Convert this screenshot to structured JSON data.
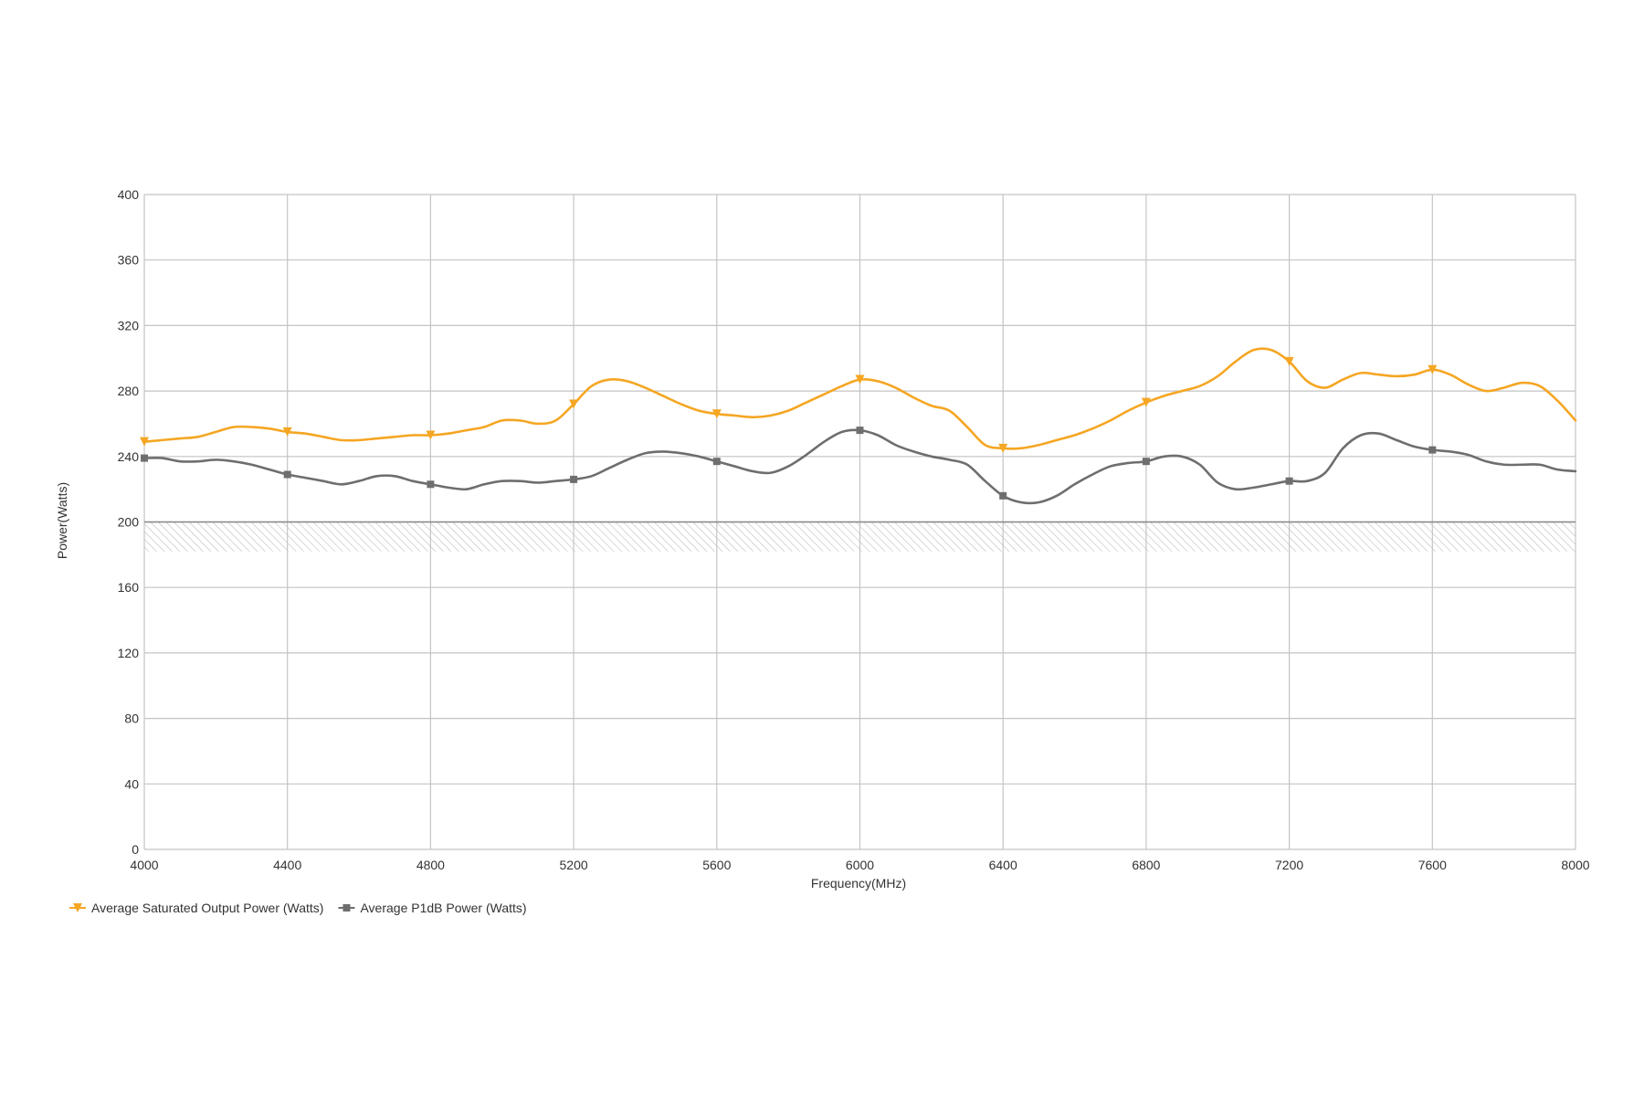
{
  "chart_data": {
    "type": "line",
    "xlabel": "Frequency(MHz)",
    "ylabel": "Power(Watts)",
    "xlim": [
      4000,
      8000
    ],
    "ylim": [
      0,
      400
    ],
    "x_ticks": [
      4000,
      4400,
      4800,
      5200,
      5600,
      6000,
      6400,
      6800,
      7200,
      7600,
      8000
    ],
    "y_ticks": [
      0,
      40,
      80,
      120,
      160,
      200,
      240,
      280,
      320,
      360,
      400
    ],
    "grid": true,
    "legend_position": "bottom-left",
    "hatched_band": [
      182,
      200
    ],
    "series": [
      {
        "name": "Average Saturated Output Power (Watts)",
        "color": "#f5a623",
        "marker": "triangle",
        "marker_x": [
          4000,
          4400,
          4800,
          5200,
          5600,
          6000,
          6400,
          6800,
          7200,
          7600
        ],
        "x": [
          4000,
          4050,
          4100,
          4150,
          4200,
          4250,
          4300,
          4350,
          4400,
          4450,
          4500,
          4550,
          4600,
          4650,
          4700,
          4750,
          4800,
          4850,
          4900,
          4950,
          5000,
          5050,
          5100,
          5150,
          5200,
          5250,
          5300,
          5350,
          5400,
          5450,
          5500,
          5550,
          5600,
          5650,
          5700,
          5750,
          5800,
          5850,
          5900,
          5950,
          6000,
          6050,
          6100,
          6150,
          6200,
          6250,
          6300,
          6350,
          6400,
          6450,
          6500,
          6550,
          6600,
          6650,
          6700,
          6750,
          6800,
          6850,
          6900,
          6950,
          7000,
          7050,
          7100,
          7150,
          7200,
          7250,
          7300,
          7350,
          7400,
          7450,
          7500,
          7550,
          7600,
          7650,
          7700,
          7750,
          7800,
          7850,
          7900,
          7950,
          8000
        ],
        "values": [
          249,
          250,
          251,
          252,
          255,
          258,
          258,
          257,
          255,
          254,
          252,
          250,
          250,
          251,
          252,
          253,
          253,
          254,
          256,
          258,
          262,
          262,
          260,
          262,
          272,
          283,
          287,
          286,
          282,
          277,
          272,
          268,
          266,
          265,
          264,
          265,
          268,
          273,
          278,
          283,
          287,
          286,
          282,
          276,
          271,
          268,
          258,
          247,
          245,
          245,
          247,
          250,
          253,
          257,
          262,
          268,
          273,
          277,
          280,
          283,
          289,
          298,
          305,
          305,
          298,
          286,
          282,
          287,
          291,
          290,
          289,
          290,
          293,
          290,
          284,
          280,
          282,
          285,
          283,
          274,
          262
        ]
      },
      {
        "name": "Average P1dB Power (Watts)",
        "color": "#6e6e6e",
        "marker": "square",
        "marker_x": [
          4000,
          4400,
          4800,
          5200,
          5600,
          6000,
          6400,
          6800,
          7200,
          7600
        ],
        "x": [
          4000,
          4050,
          4100,
          4150,
          4200,
          4250,
          4300,
          4350,
          4400,
          4450,
          4500,
          4550,
          4600,
          4650,
          4700,
          4750,
          4800,
          4850,
          4900,
          4950,
          5000,
          5050,
          5100,
          5150,
          5200,
          5250,
          5300,
          5350,
          5400,
          5450,
          5500,
          5550,
          5600,
          5650,
          5700,
          5750,
          5800,
          5850,
          5900,
          5950,
          6000,
          6050,
          6100,
          6150,
          6200,
          6250,
          6300,
          6350,
          6400,
          6450,
          6500,
          6550,
          6600,
          6650,
          6700,
          6750,
          6800,
          6850,
          6900,
          6950,
          7000,
          7050,
          7100,
          7150,
          7200,
          7250,
          7300,
          7350,
          7400,
          7450,
          7500,
          7550,
          7600,
          7650,
          7700,
          7750,
          7800,
          7850,
          7900,
          7950,
          8000
        ],
        "values": [
          239,
          239,
          237,
          237,
          238,
          237,
          235,
          232,
          229,
          227,
          225,
          223,
          225,
          228,
          228,
          225,
          223,
          221,
          220,
          223,
          225,
          225,
          224,
          225,
          226,
          228,
          233,
          238,
          242,
          243,
          242,
          240,
          237,
          234,
          231,
          230,
          234,
          241,
          249,
          255,
          256,
          253,
          247,
          243,
          240,
          238,
          235,
          225,
          216,
          212,
          212,
          216,
          223,
          229,
          234,
          236,
          237,
          240,
          240,
          235,
          224,
          220,
          221,
          223,
          225,
          225,
          230,
          245,
          253,
          254,
          250,
          246,
          244,
          243,
          241,
          237,
          235,
          235,
          235,
          232,
          231
        ]
      }
    ]
  }
}
